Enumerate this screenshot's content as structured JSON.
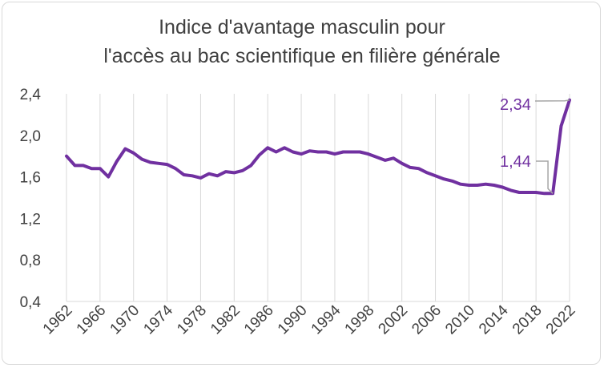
{
  "chart_data": {
    "type": "line",
    "title_lines": [
      "Indice d'avantage masculin pour",
      "l'accès au bac scientifique en filière générale"
    ],
    "xlabel": "",
    "ylabel": "",
    "ylim": [
      0.4,
      2.4
    ],
    "xlim": [
      1962,
      2022
    ],
    "yticks": [
      "2,4",
      "2,0",
      "1,6",
      "1,2",
      "0,8",
      "0,4"
    ],
    "ytick_values": [
      2.4,
      2.0,
      1.6,
      1.2,
      0.8,
      0.4
    ],
    "xticks": [
      "1962",
      "1966",
      "1970",
      "1974",
      "1978",
      "1982",
      "1986",
      "1990",
      "1994",
      "1998",
      "2002",
      "2006",
      "2010",
      "2014",
      "2018",
      "2022"
    ],
    "xtick_values": [
      1962,
      1966,
      1970,
      1974,
      1978,
      1982,
      1986,
      1990,
      1994,
      1998,
      2002,
      2006,
      2010,
      2014,
      2018,
      2022
    ],
    "grid": "vertical",
    "line_color": "#7030a0",
    "x": [
      1962,
      1963,
      1964,
      1965,
      1966,
      1967,
      1968,
      1969,
      1970,
      1971,
      1972,
      1973,
      1974,
      1975,
      1976,
      1977,
      1978,
      1979,
      1980,
      1981,
      1982,
      1983,
      1984,
      1985,
      1986,
      1987,
      1988,
      1989,
      1990,
      1991,
      1992,
      1993,
      1994,
      1995,
      1996,
      1997,
      1998,
      1999,
      2000,
      2001,
      2002,
      2003,
      2004,
      2005,
      2006,
      2007,
      2008,
      2009,
      2010,
      2011,
      2012,
      2013,
      2014,
      2015,
      2016,
      2017,
      2018,
      2019,
      2020,
      2021,
      2022
    ],
    "values": [
      1.8,
      1.71,
      1.71,
      1.68,
      1.68,
      1.6,
      1.75,
      1.87,
      1.83,
      1.77,
      1.74,
      1.73,
      1.72,
      1.68,
      1.62,
      1.61,
      1.59,
      1.63,
      1.61,
      1.65,
      1.64,
      1.66,
      1.71,
      1.81,
      1.88,
      1.84,
      1.88,
      1.84,
      1.82,
      1.85,
      1.84,
      1.84,
      1.82,
      1.84,
      1.84,
      1.84,
      1.82,
      1.79,
      1.76,
      1.78,
      1.73,
      1.69,
      1.68,
      1.64,
      1.61,
      1.58,
      1.56,
      1.53,
      1.52,
      1.52,
      1.53,
      1.52,
      1.5,
      1.47,
      1.45,
      1.45,
      1.45,
      1.44,
      1.44,
      2.09,
      2.34
    ],
    "annotations": [
      {
        "text": "2,34",
        "x": 2022,
        "y": 2.34,
        "color": "#7030a0"
      },
      {
        "text": "1,44",
        "x": 2020,
        "y": 1.44,
        "color": "#7030a0"
      }
    ]
  }
}
